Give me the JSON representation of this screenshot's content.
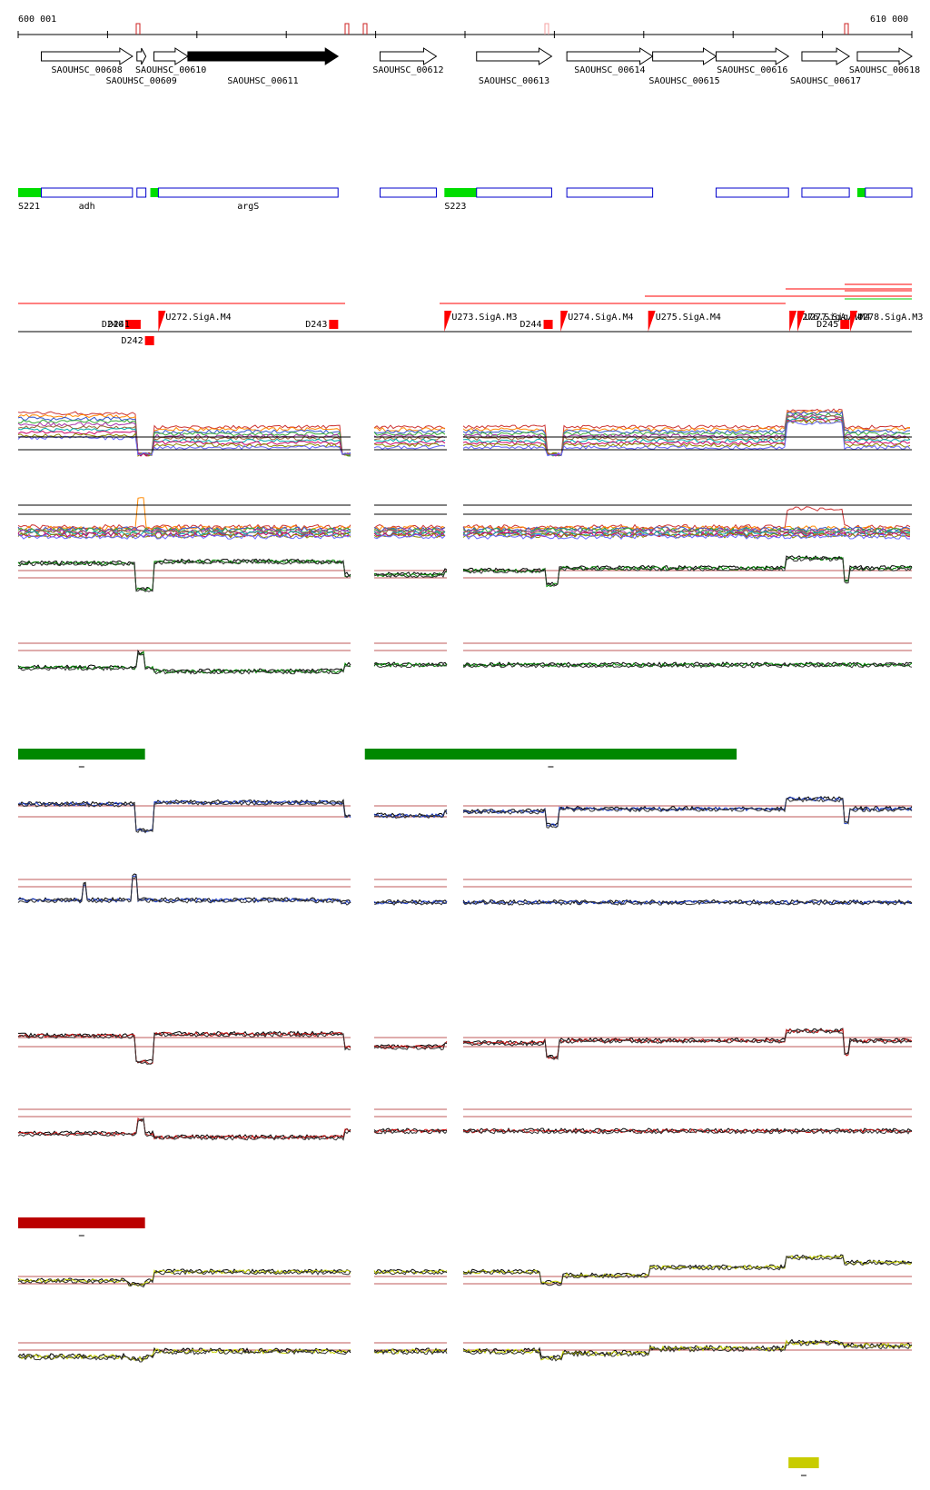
{
  "ruler": {
    "start_label": "600 001",
    "end_label": "610 000"
  },
  "colors": {
    "gene_outline": "#000000",
    "gene_filled": "#000000",
    "annotation_outline": "#0000cc",
    "annotation_green": "#00dd00",
    "promoter_red": "#ff0000",
    "threshold": "#aa2222",
    "green_track": "#008800",
    "blue_track": "#1a3ccc",
    "red_track": "#cc1111",
    "yellow_track": "#c8d400",
    "green_bar": "#008800",
    "red_bar": "#bb0000",
    "yellow_bar": "#c8cc00"
  },
  "chart_data": [
    {
      "type": "genome-track",
      "name": "genes",
      "x_range": [
        600001,
        610000
      ],
      "genes": [
        {
          "label": "SAOUHSC_00608",
          "start": 600260,
          "end": 601280,
          "strand": "+",
          "filled": false
        },
        {
          "label": "SAOUHSC_00609",
          "start": 601330,
          "end": 601430,
          "strand": "+",
          "filled": false
        },
        {
          "label": "SAOUHSC_00610",
          "start": 601520,
          "end": 601900,
          "strand": "+",
          "filled": false
        },
        {
          "label": "SAOUHSC_00611",
          "start": 601900,
          "end": 603580,
          "strand": "+",
          "filled": true
        },
        {
          "label": "SAOUHSC_00612",
          "start": 604050,
          "end": 604680,
          "strand": "+",
          "filled": false
        },
        {
          "label": "SAOUHSC_00613",
          "start": 605130,
          "end": 605970,
          "strand": "+",
          "filled": false
        },
        {
          "label": "SAOUHSC_00614",
          "start": 606140,
          "end": 607100,
          "strand": "+",
          "filled": false
        },
        {
          "label": "SAOUHSC_00615",
          "start": 607100,
          "end": 607810,
          "strand": "+",
          "filled": false
        },
        {
          "label": "SAOUHSC_00616",
          "start": 607810,
          "end": 608620,
          "strand": "+",
          "filled": false
        },
        {
          "label": "SAOUHSC_00617",
          "start": 608770,
          "end": 609300,
          "strand": "+",
          "filled": false
        },
        {
          "label": "SAOUHSC_00618",
          "start": 609390,
          "end": 610000,
          "strand": "+",
          "filled": false
        }
      ]
    },
    {
      "type": "genome-track",
      "name": "annotations",
      "segments": [
        {
          "label": "S221",
          "start": 600001,
          "end": 600260,
          "kind": "green"
        },
        {
          "label": "adh",
          "start": 600260,
          "end": 601280,
          "kind": "box"
        },
        {
          "label": "",
          "start": 601330,
          "end": 601430,
          "kind": "box"
        },
        {
          "label": "",
          "start": 601480,
          "end": 601570,
          "kind": "green"
        },
        {
          "label": "argS",
          "start": 601570,
          "end": 603580,
          "kind": "box"
        },
        {
          "label": "",
          "start": 604050,
          "end": 604680,
          "kind": "box"
        },
        {
          "label": "S223",
          "start": 604770,
          "end": 605130,
          "kind": "green"
        },
        {
          "label": "",
          "start": 605130,
          "end": 605970,
          "kind": "box"
        },
        {
          "label": "",
          "start": 606140,
          "end": 607100,
          "kind": "box"
        },
        {
          "label": "",
          "start": 607810,
          "end": 608620,
          "kind": "box"
        },
        {
          "label": "",
          "start": 608770,
          "end": 609300,
          "kind": "box"
        },
        {
          "label": "",
          "start": 609390,
          "end": 609480,
          "kind": "green"
        },
        {
          "label": "",
          "start": 609480,
          "end": 610000,
          "kind": "box"
        }
      ]
    },
    {
      "type": "genome-track",
      "name": "promoters",
      "features": [
        {
          "label": "D240",
          "pos": 601200,
          "kind": "down"
        },
        {
          "label": "D241",
          "pos": 601270,
          "kind": "down"
        },
        {
          "label": "D242",
          "pos": 601420,
          "kind": "down"
        },
        {
          "label": "U272.SigA.M4",
          "pos": 601570,
          "kind": "up"
        },
        {
          "label": "D243",
          "pos": 603480,
          "kind": "down"
        },
        {
          "label": "U273.SigA.M3",
          "pos": 604770,
          "kind": "up"
        },
        {
          "label": "D244",
          "pos": 605880,
          "kind": "down"
        },
        {
          "label": "U274.SigA.M4",
          "pos": 606070,
          "kind": "up"
        },
        {
          "label": "U275.SigA.M4",
          "pos": 607050,
          "kind": "up"
        },
        {
          "label": "U276.SigA.M4",
          "pos": 608630,
          "kind": "up"
        },
        {
          "label": "U277.SigA.M4",
          "pos": 608720,
          "kind": "up"
        },
        {
          "label": "D245",
          "pos": 609200,
          "kind": "down"
        },
        {
          "label": "U278.SigA.M3",
          "pos": 609310,
          "kind": "up"
        }
      ]
    },
    {
      "type": "line",
      "name": "expression-profiles",
      "series": [
        {
          "values": [
            0.8,
            0.8,
            0.8,
            0.2,
            0.45,
            0.45,
            0.45,
            0.45,
            0.45,
            0.45,
            0.45,
            0.45
          ]
        },
        {
          "values": [
            0.6,
            0.6,
            0.6,
            0.15,
            0.4,
            0.4,
            0.4,
            0.4,
            0.38,
            0.45,
            0.7,
            0.45
          ]
        },
        {
          "values": [
            0.4,
            0.4,
            0.4,
            0.1,
            0.35,
            0.35,
            0.35,
            0.3,
            0.4,
            0.42,
            0.55,
            0.35
          ]
        }
      ]
    },
    {
      "type": "bar",
      "name": "condition-bars",
      "segments": [
        {
          "color": "green",
          "start": 600001,
          "end": 601420
        },
        {
          "color": "green",
          "start": 603880,
          "end": 608040
        },
        {
          "color": "red",
          "start": 600001,
          "end": 601420
        },
        {
          "color": "yellow",
          "start": 608620,
          "end": 608960
        }
      ]
    }
  ]
}
